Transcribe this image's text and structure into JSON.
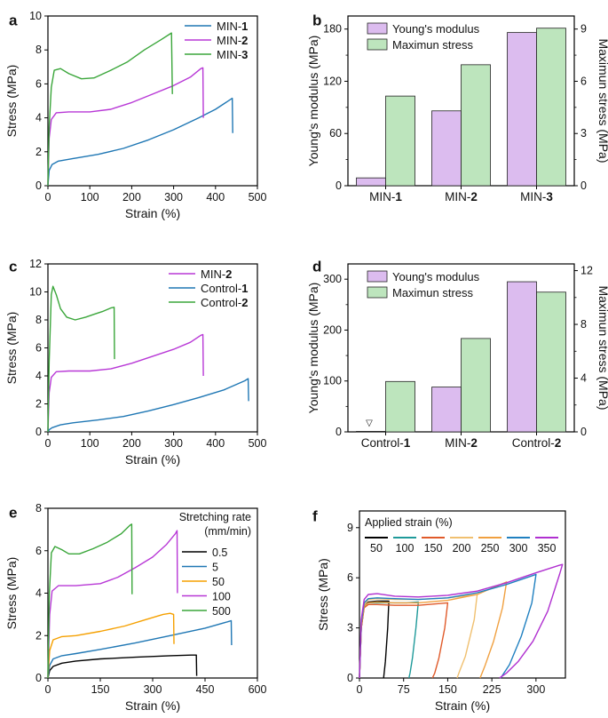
{
  "chart_data": [
    {
      "panel": "a",
      "type": "line",
      "xlabel": "Strain (%)",
      "ylabel": "Stress (MPa)",
      "xlim": [
        0,
        500
      ],
      "ylim": [
        0,
        10
      ],
      "xticks": [
        "0",
        "100",
        "200",
        "300",
        "400",
        "500"
      ],
      "yticks": [
        "0",
        "2",
        "4",
        "6",
        "8",
        "10"
      ],
      "legend_pos": "top-right",
      "series": [
        {
          "name": "MIN-",
          "bold": "1",
          "color": "#1f77b4",
          "x": [
            0,
            3,
            10,
            25,
            60,
            120,
            180,
            240,
            300,
            360,
            400,
            440,
            441
          ],
          "y": [
            0,
            0.9,
            1.25,
            1.45,
            1.6,
            1.85,
            2.2,
            2.7,
            3.3,
            4.0,
            4.5,
            5.15,
            3.1
          ]
        },
        {
          "name": "MIN-",
          "bold": "2",
          "color": "#b838d6",
          "x": [
            0,
            3,
            8,
            20,
            50,
            100,
            150,
            200,
            250,
            300,
            340,
            365,
            370,
            371
          ],
          "y": [
            0,
            2.8,
            3.9,
            4.3,
            4.35,
            4.35,
            4.5,
            4.9,
            5.4,
            5.9,
            6.4,
            6.9,
            6.95,
            4.0
          ]
        },
        {
          "name": "MIN-",
          "bold": "3",
          "color": "#3aa63a",
          "x": [
            0,
            3,
            8,
            15,
            30,
            50,
            80,
            110,
            150,
            190,
            230,
            270,
            295,
            297
          ],
          "y": [
            0,
            3.5,
            5.8,
            6.8,
            6.9,
            6.6,
            6.3,
            6.35,
            6.8,
            7.3,
            8.0,
            8.6,
            9.0,
            5.4
          ]
        }
      ]
    },
    {
      "panel": "b",
      "type": "bar",
      "categories": [
        {
          "text": "MIN-",
          "bold": "1"
        },
        {
          "text": "MIN-",
          "bold": "2"
        },
        {
          "text": "MIN-",
          "bold": "3"
        }
      ],
      "ylabel": "Young's modulus (MPa)",
      "y2label": "Maximun stress (MPa)",
      "ylim": [
        0,
        195
      ],
      "y2lim": [
        0,
        9.75
      ],
      "yticks": [
        "0",
        "60",
        "120",
        "180"
      ],
      "y2ticks": [
        "0",
        "3",
        "6",
        "9"
      ],
      "legend_pos": "top-left",
      "series": [
        {
          "name": "Young's modulus",
          "axis": "left",
          "color": "#dcbcef",
          "values": [
            9,
            86,
            176
          ]
        },
        {
          "name": "Maximun stress",
          "axis": "right",
          "color": "#bde5bd",
          "values": [
            5.15,
            6.95,
            9.05
          ]
        }
      ]
    },
    {
      "panel": "c",
      "type": "line",
      "xlabel": "Strain (%)",
      "ylabel": "Stress (MPa)",
      "xlim": [
        0,
        500
      ],
      "ylim": [
        0,
        12
      ],
      "xticks": [
        "0",
        "100",
        "200",
        "300",
        "400",
        "500"
      ],
      "yticks": [
        "0",
        "2",
        "4",
        "6",
        "8",
        "10",
        "12"
      ],
      "legend_pos": "top-right",
      "series": [
        {
          "name": "MIN-",
          "bold": "2",
          "color": "#b838d6",
          "x": [
            0,
            3,
            8,
            20,
            50,
            100,
            150,
            200,
            250,
            300,
            340,
            365,
            370,
            371
          ],
          "y": [
            0,
            2.8,
            3.9,
            4.3,
            4.35,
            4.35,
            4.5,
            4.9,
            5.4,
            5.9,
            6.4,
            6.9,
            6.95,
            4.0
          ]
        },
        {
          "name": "Control-",
          "bold": "1",
          "color": "#1f77b4",
          "x": [
            0,
            3,
            10,
            30,
            60,
            120,
            180,
            240,
            300,
            360,
            420,
            470,
            478,
            479
          ],
          "y": [
            0,
            0.15,
            0.3,
            0.5,
            0.65,
            0.85,
            1.1,
            1.5,
            1.95,
            2.45,
            3.0,
            3.65,
            3.8,
            2.2
          ]
        },
        {
          "name": "Control-",
          "bold": "2",
          "color": "#3aa63a",
          "x": [
            0,
            3,
            8,
            12,
            20,
            30,
            45,
            65,
            90,
            110,
            130,
            150,
            158,
            159
          ],
          "y": [
            0,
            5.0,
            9.8,
            10.4,
            9.8,
            8.8,
            8.2,
            8.0,
            8.2,
            8.4,
            8.6,
            8.85,
            8.9,
            5.2
          ]
        }
      ]
    },
    {
      "panel": "d",
      "type": "bar",
      "categories": [
        {
          "text": "Control-",
          "bold": "1"
        },
        {
          "text": "MIN-",
          "bold": "2"
        },
        {
          "text": "Control-",
          "bold": "2"
        }
      ],
      "ylabel": "Young's modulus (MPa)",
      "y2label": "Maximun stress (MPa)",
      "ylim": [
        0,
        330
      ],
      "y2lim": [
        0,
        12.5
      ],
      "yticks": [
        "0",
        "100",
        "200",
        "300"
      ],
      "y2ticks": [
        "0",
        "4",
        "8",
        "12"
      ],
      "legend_pos": "top-left",
      "annotation": "▽",
      "series": [
        {
          "name": "Young's modulus",
          "axis": "left",
          "color": "#dcbcef",
          "values": [
            1,
            88,
            295
          ]
        },
        {
          "name": "Maximun stress",
          "axis": "right",
          "color": "#bde5bd",
          "values": [
            3.75,
            6.95,
            10.4
          ]
        }
      ]
    },
    {
      "panel": "e",
      "type": "line",
      "xlabel": "Strain (%)",
      "ylabel": "Stress (MPa)",
      "xlim": [
        0,
        600
      ],
      "ylim": [
        0,
        8
      ],
      "xticks": [
        "0",
        "150",
        "300",
        "450",
        "600"
      ],
      "yticks": [
        "0",
        "2",
        "4",
        "6",
        "8"
      ],
      "legend_title": [
        "Stretching rate",
        "(mm/min)"
      ],
      "legend_pos": "top-right",
      "series": [
        {
          "name": "0.5",
          "color": "#000000",
          "x": [
            0,
            5,
            15,
            40,
            80,
            150,
            250,
            350,
            410,
            425,
            426
          ],
          "y": [
            0,
            0.35,
            0.55,
            0.7,
            0.8,
            0.9,
            0.98,
            1.05,
            1.08,
            1.08,
            0.1
          ]
        },
        {
          "name": "5",
          "color": "#1f77b4",
          "x": [
            0,
            5,
            15,
            40,
            80,
            150,
            250,
            350,
            450,
            515,
            525,
            526
          ],
          "y": [
            0,
            0.6,
            0.9,
            1.05,
            1.15,
            1.35,
            1.65,
            2.0,
            2.35,
            2.65,
            2.7,
            1.55
          ]
        },
        {
          "name": "50",
          "color": "#f5a000",
          "x": [
            0,
            5,
            15,
            40,
            80,
            150,
            220,
            280,
            330,
            350,
            360,
            361
          ],
          "y": [
            0,
            1.3,
            1.8,
            1.95,
            2.0,
            2.2,
            2.45,
            2.75,
            3.0,
            3.05,
            3.0,
            1.6
          ]
        },
        {
          "name": "100",
          "color": "#b838d6",
          "x": [
            0,
            5,
            12,
            30,
            80,
            150,
            200,
            250,
            300,
            340,
            365,
            370,
            371
          ],
          "y": [
            0,
            3.0,
            4.1,
            4.35,
            4.35,
            4.45,
            4.75,
            5.2,
            5.7,
            6.3,
            6.8,
            6.95,
            4.0
          ]
        },
        {
          "name": "500",
          "color": "#3aa63a",
          "x": [
            0,
            4,
            10,
            20,
            40,
            60,
            90,
            130,
            170,
            210,
            235,
            240,
            241
          ],
          "y": [
            0,
            4.0,
            5.9,
            6.2,
            6.05,
            5.85,
            5.85,
            6.1,
            6.4,
            6.8,
            7.2,
            7.25,
            3.95
          ]
        }
      ]
    },
    {
      "panel": "f",
      "type": "line",
      "xlabel": "Strain (%)",
      "ylabel": "Stress (MPa)",
      "xlim": [
        0,
        350
      ],
      "ylim": [
        0,
        10
      ],
      "xticks": [
        "0",
        "75",
        "150",
        "225",
        "300"
      ],
      "yticks": [
        "0",
        "3",
        "6",
        "9"
      ],
      "legend_title": [
        "Applied strain (%)"
      ],
      "legend_pos": "top",
      "series": [
        {
          "name": "50",
          "color": "#000000",
          "x": [
            0,
            3,
            8,
            15,
            30,
            45,
            50,
            48,
            44,
            42,
            41
          ],
          "y": [
            0,
            3.0,
            4.3,
            4.55,
            4.6,
            4.6,
            4.6,
            3.0,
            1.0,
            0.3,
            0
          ]
        },
        {
          "name": "100",
          "color": "#1f9a9a",
          "x": [
            0,
            3,
            8,
            15,
            30,
            50,
            80,
            100,
            96,
            90,
            86,
            84
          ],
          "y": [
            0,
            3.0,
            4.3,
            4.5,
            4.5,
            4.5,
            4.5,
            4.55,
            3.0,
            1.2,
            0.3,
            0
          ]
        },
        {
          "name": "150",
          "color": "#e05a2a",
          "x": [
            0,
            3,
            8,
            15,
            30,
            60,
            100,
            150,
            145,
            135,
            128,
            124
          ],
          "y": [
            0,
            3.0,
            4.2,
            4.4,
            4.4,
            4.35,
            4.35,
            4.5,
            3.0,
            1.2,
            0.3,
            0
          ]
        },
        {
          "name": "200",
          "color": "#f0c070",
          "x": [
            0,
            3,
            8,
            15,
            30,
            60,
            100,
            150,
            200,
            195,
            180,
            170,
            166
          ],
          "y": [
            0,
            3.2,
            4.4,
            4.7,
            4.75,
            4.7,
            4.7,
            4.8,
            5.0,
            3.5,
            1.3,
            0.4,
            0
          ]
        },
        {
          "name": "250",
          "color": "#f0a040",
          "x": [
            0,
            3,
            8,
            15,
            30,
            60,
            100,
            150,
            200,
            250,
            243,
            228,
            213,
            205
          ],
          "y": [
            0,
            3.2,
            4.3,
            4.5,
            4.55,
            4.5,
            4.5,
            4.65,
            5.0,
            5.75,
            4.2,
            2.2,
            0.7,
            0
          ]
        },
        {
          "name": "300",
          "color": "#2080c0",
          "x": [
            0,
            3,
            8,
            15,
            30,
            60,
            100,
            150,
            200,
            250,
            300,
            293,
            275,
            255,
            240
          ],
          "y": [
            0,
            3.3,
            4.5,
            4.75,
            4.8,
            4.75,
            4.7,
            4.8,
            5.1,
            5.6,
            6.2,
            4.5,
            2.5,
            0.8,
            0
          ]
        },
        {
          "name": "350",
          "color": "#b030d0",
          "x": [
            0,
            3,
            8,
            15,
            30,
            60,
            100,
            150,
            200,
            250,
            300,
            340,
            345,
            340,
            320,
            295,
            270,
            250,
            238
          ],
          "y": [
            0,
            3.5,
            4.7,
            5.0,
            5.05,
            4.9,
            4.85,
            4.95,
            5.2,
            5.7,
            6.3,
            6.75,
            6.8,
            6.2,
            4.0,
            2.2,
            1.0,
            0.3,
            0
          ]
        }
      ]
    }
  ]
}
